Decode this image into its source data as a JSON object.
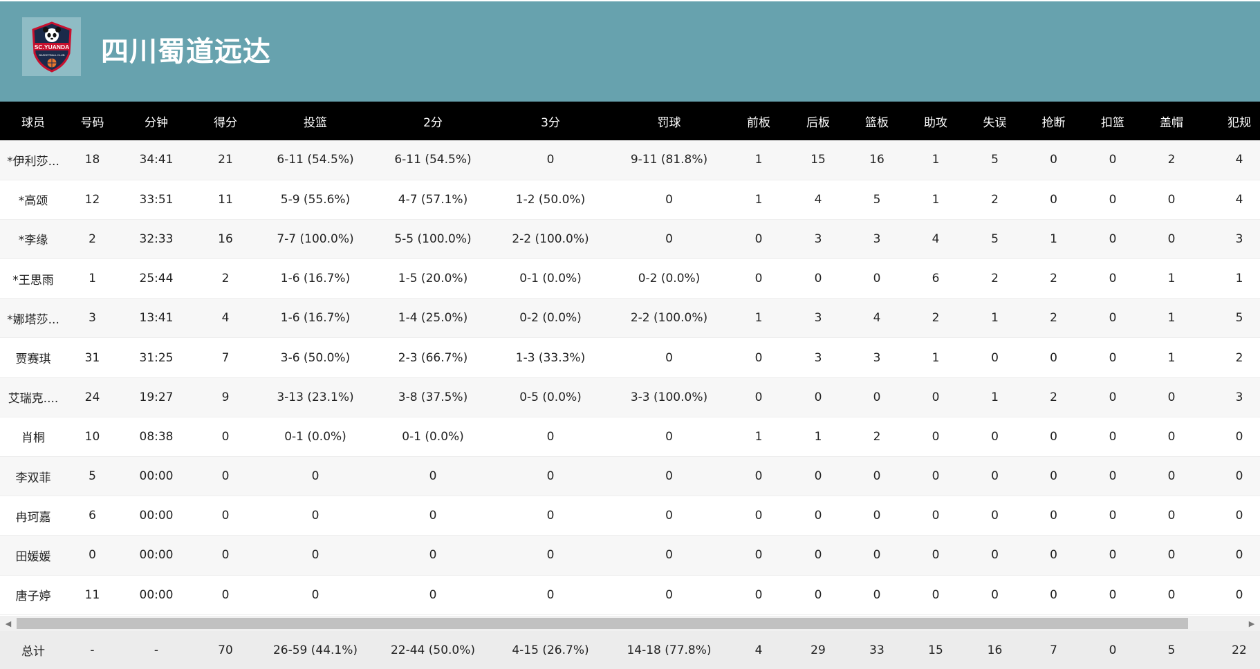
{
  "team": {
    "name": "四川蜀道远达",
    "logo_text": "SC.YUANDA",
    "logo_subtext": "BASKETBALL CLUB"
  },
  "colors": {
    "header_bg": "#67a2ae",
    "table_header_bg": "#000000",
    "row_alt_bg": "#f7f7f7",
    "totals_bg": "#ececec"
  },
  "columns": [
    "球员",
    "号码",
    "分钟",
    "得分",
    "投篮",
    "2分",
    "3分",
    "罚球",
    "前板",
    "后板",
    "篮板",
    "助攻",
    "失误",
    "抢断",
    "扣篮",
    "盖帽",
    "犯规"
  ],
  "players": [
    [
      "*伊利莎...",
      "18",
      "34:41",
      "21",
      "6-11 (54.5%)",
      "6-11 (54.5%)",
      "0",
      "9-11 (81.8%)",
      "1",
      "15",
      "16",
      "1",
      "5",
      "0",
      "0",
      "2",
      "4"
    ],
    [
      "*高颂",
      "12",
      "33:51",
      "11",
      "5-9 (55.6%)",
      "4-7 (57.1%)",
      "1-2 (50.0%)",
      "0",
      "1",
      "4",
      "5",
      "1",
      "2",
      "0",
      "0",
      "0",
      "4"
    ],
    [
      "*李缘",
      "2",
      "32:33",
      "16",
      "7-7 (100.0%)",
      "5-5 (100.0%)",
      "2-2 (100.0%)",
      "0",
      "0",
      "3",
      "3",
      "4",
      "5",
      "1",
      "0",
      "0",
      "3"
    ],
    [
      "*王思雨",
      "1",
      "25:44",
      "2",
      "1-6 (16.7%)",
      "1-5 (20.0%)",
      "0-1 (0.0%)",
      "0-2 (0.0%)",
      "0",
      "0",
      "0",
      "6",
      "2",
      "2",
      "0",
      "1",
      "1"
    ],
    [
      "*娜塔莎...",
      "3",
      "13:41",
      "4",
      "1-6 (16.7%)",
      "1-4 (25.0%)",
      "0-2 (0.0%)",
      "2-2 (100.0%)",
      "1",
      "3",
      "4",
      "2",
      "1",
      "2",
      "0",
      "1",
      "5"
    ],
    [
      "贾赛琪",
      "31",
      "31:25",
      "7",
      "3-6 (50.0%)",
      "2-3 (66.7%)",
      "1-3 (33.3%)",
      "0",
      "0",
      "3",
      "3",
      "1",
      "0",
      "0",
      "0",
      "1",
      "2"
    ],
    [
      "艾瑞克....",
      "24",
      "19:27",
      "9",
      "3-13 (23.1%)",
      "3-8 (37.5%)",
      "0-5 (0.0%)",
      "3-3 (100.0%)",
      "0",
      "0",
      "0",
      "0",
      "1",
      "2",
      "0",
      "0",
      "3"
    ],
    [
      "肖桐",
      "10",
      "08:38",
      "0",
      "0-1 (0.0%)",
      "0-1 (0.0%)",
      "0",
      "0",
      "1",
      "1",
      "2",
      "0",
      "0",
      "0",
      "0",
      "0",
      "0"
    ],
    [
      "李双菲",
      "5",
      "00:00",
      "0",
      "0",
      "0",
      "0",
      "0",
      "0",
      "0",
      "0",
      "0",
      "0",
      "0",
      "0",
      "0",
      "0"
    ],
    [
      "冉珂嘉",
      "6",
      "00:00",
      "0",
      "0",
      "0",
      "0",
      "0",
      "0",
      "0",
      "0",
      "0",
      "0",
      "0",
      "0",
      "0",
      "0"
    ],
    [
      "田媛媛",
      "0",
      "00:00",
      "0",
      "0",
      "0",
      "0",
      "0",
      "0",
      "0",
      "0",
      "0",
      "0",
      "0",
      "0",
      "0",
      "0"
    ],
    [
      "唐子婷",
      "11",
      "00:00",
      "0",
      "0",
      "0",
      "0",
      "0",
      "0",
      "0",
      "0",
      "0",
      "0",
      "0",
      "0",
      "0",
      "0"
    ]
  ],
  "totals": [
    "总计",
    "-",
    "-",
    "70",
    "26-59 (44.1%)",
    "22-44 (50.0%)",
    "4-15 (26.7%)",
    "14-18 (77.8%)",
    "4",
    "29",
    "33",
    "15",
    "16",
    "7",
    "0",
    "5",
    "22"
  ],
  "scrollbar": {
    "left_icon": "arrow-left-icon",
    "right_icon": "arrow-right-icon"
  }
}
